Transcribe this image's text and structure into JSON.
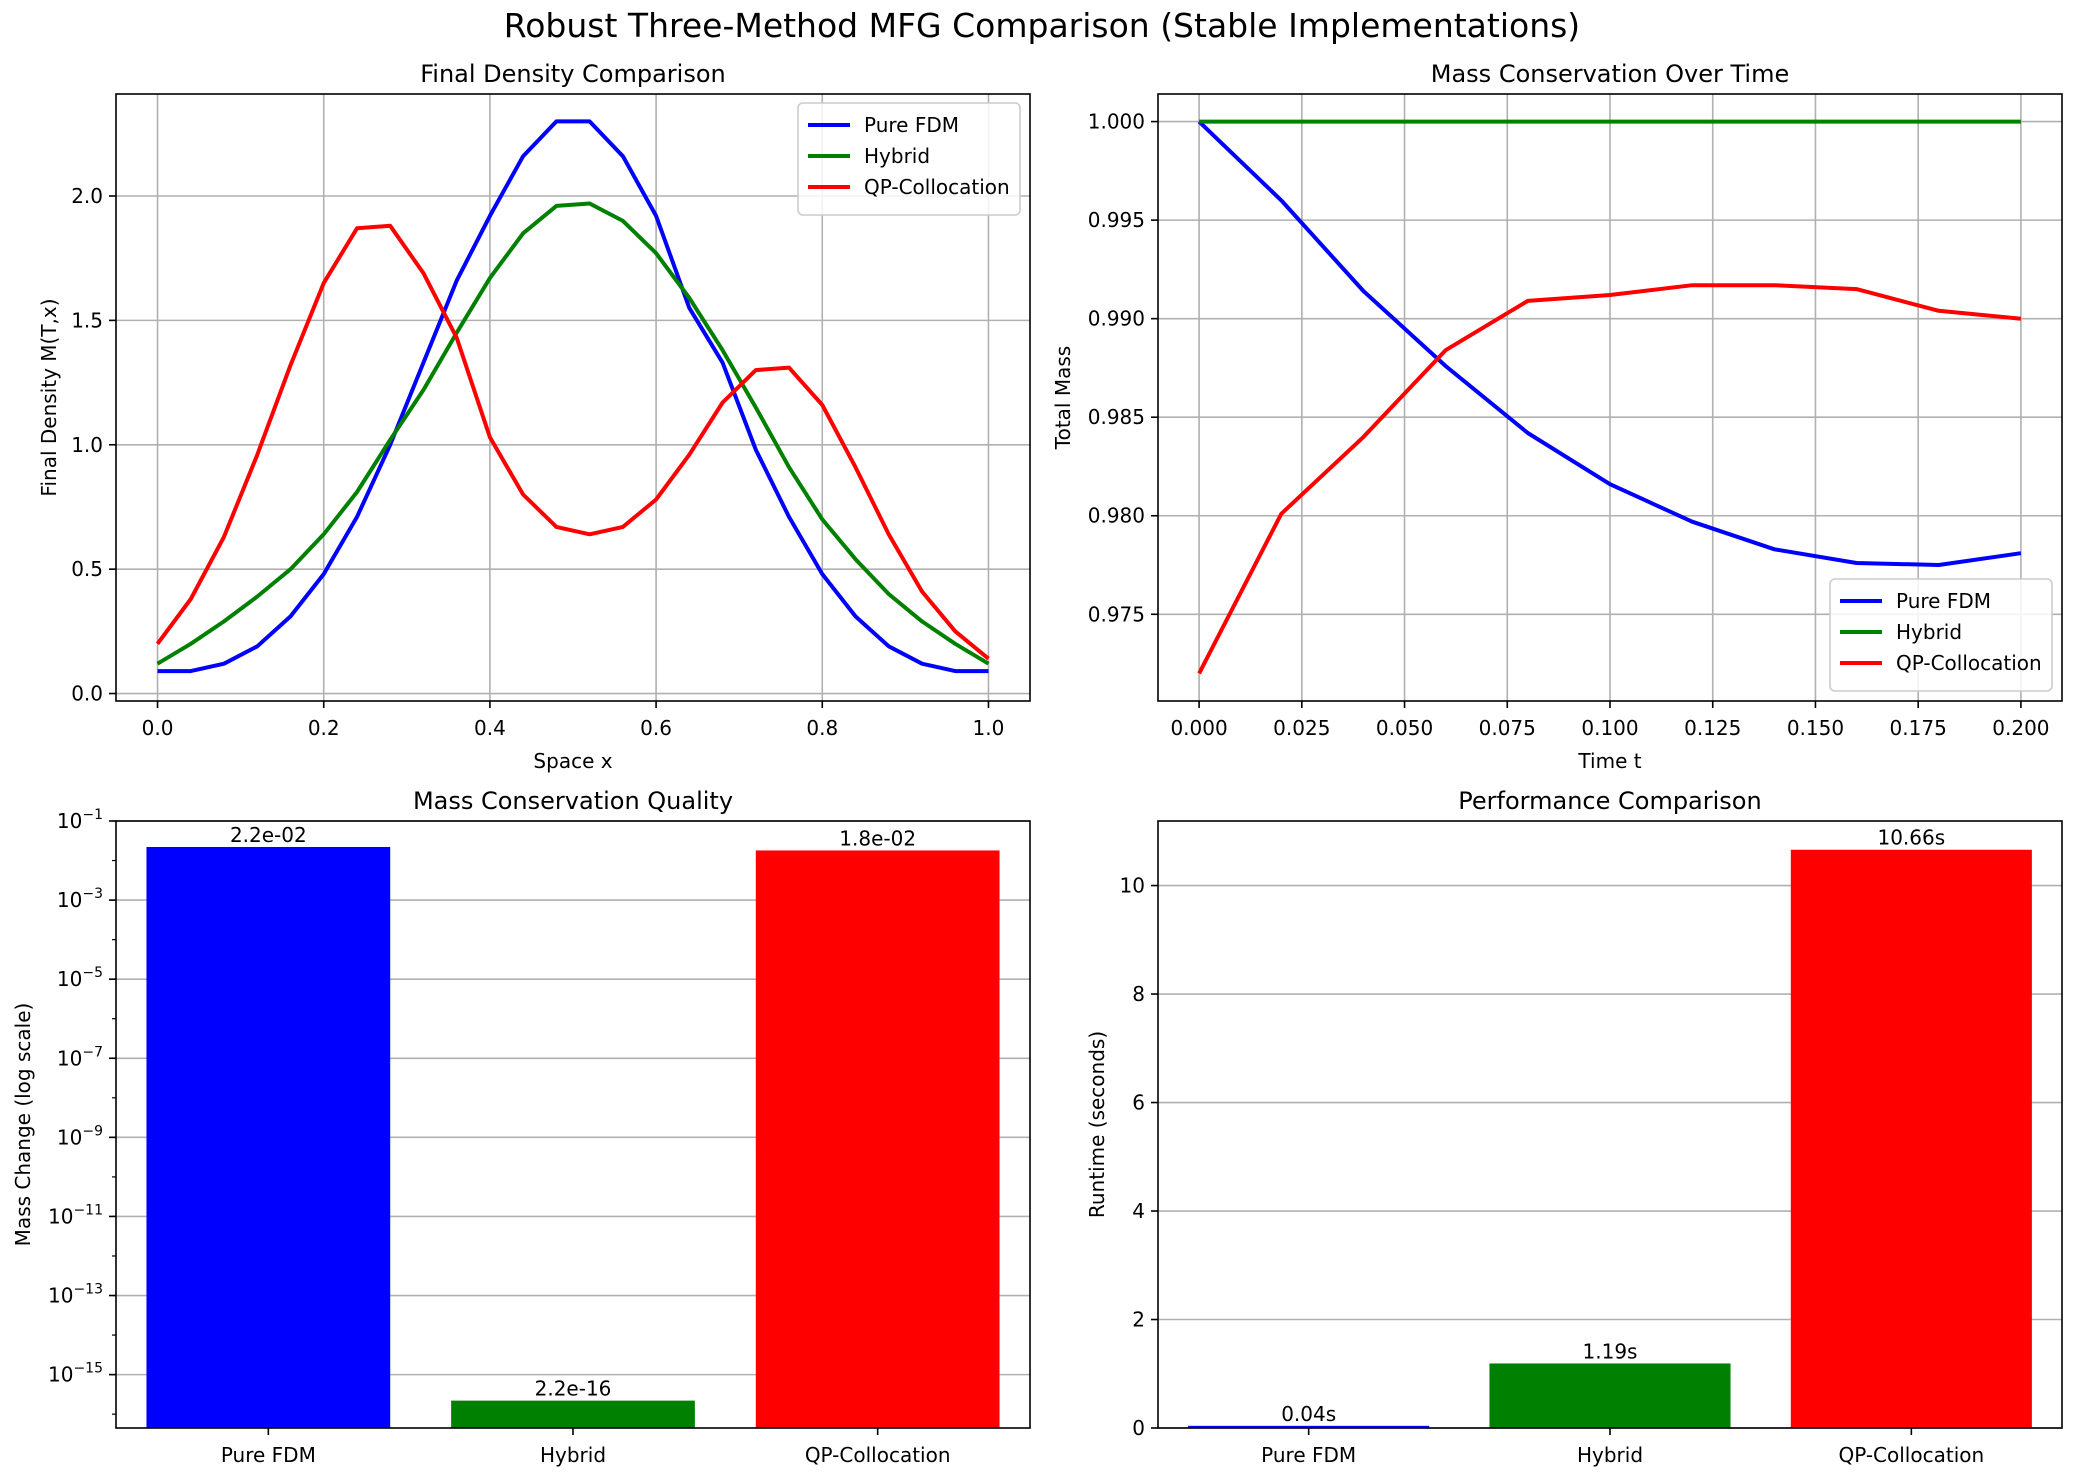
{
  "figure": {
    "title": "Robust Three-Method MFG Comparison (Stable Implementations)"
  },
  "colors": {
    "Pure FDM": "#0000ff",
    "Hybrid": "#008000",
    "QP-Collocation": "#ff0000",
    "grid": "#b0b0b0"
  },
  "chart_data": [
    {
      "id": "final-density",
      "type": "line",
      "title": "Final Density Comparison",
      "xlabel": "Space x",
      "ylabel": "Final Density M(T,x)",
      "xlim": [
        -0.05,
        1.05
      ],
      "ylim": [
        -0.03,
        2.41
      ],
      "xticks": [
        0.0,
        0.2,
        0.4,
        0.6,
        0.8,
        1.0
      ],
      "xtick_labels": [
        "0.0",
        "0.2",
        "0.4",
        "0.6",
        "0.8",
        "1.0"
      ],
      "yticks": [
        0.0,
        0.5,
        1.0,
        1.5,
        2.0
      ],
      "ytick_labels": [
        "0.0",
        "0.5",
        "1.0",
        "1.5",
        "2.0"
      ],
      "grid": true,
      "legend": "upper right",
      "x": [
        0.0,
        0.04,
        0.08,
        0.12,
        0.16,
        0.2,
        0.24,
        0.28,
        0.32,
        0.36,
        0.4,
        0.44,
        0.48,
        0.52,
        0.56,
        0.6,
        0.64,
        0.68,
        0.72,
        0.76,
        0.8,
        0.84,
        0.88,
        0.92,
        0.96,
        1.0
      ],
      "series": [
        {
          "name": "Pure FDM",
          "values": [
            0.09,
            0.09,
            0.12,
            0.19,
            0.31,
            0.48,
            0.71,
            1.0,
            1.33,
            1.66,
            1.92,
            2.16,
            2.3,
            2.3,
            2.16,
            1.92,
            1.55,
            1.33,
            0.98,
            0.71,
            0.48,
            0.31,
            0.19,
            0.12,
            0.09,
            0.09
          ]
        },
        {
          "name": "Hybrid",
          "values": [
            0.12,
            0.2,
            0.29,
            0.39,
            0.5,
            0.64,
            0.81,
            1.02,
            1.22,
            1.45,
            1.67,
            1.85,
            1.96,
            1.97,
            1.9,
            1.77,
            1.59,
            1.38,
            1.15,
            0.91,
            0.7,
            0.54,
            0.4,
            0.29,
            0.2,
            0.12
          ]
        },
        {
          "name": "QP-Collocation",
          "values": [
            0.2,
            0.38,
            0.63,
            0.96,
            1.32,
            1.65,
            1.87,
            1.88,
            1.69,
            1.43,
            1.03,
            0.8,
            0.67,
            0.64,
            0.67,
            0.78,
            0.96,
            1.17,
            1.3,
            1.31,
            1.16,
            0.91,
            0.64,
            0.41,
            0.25,
            0.14
          ]
        }
      ]
    },
    {
      "id": "mass-conservation",
      "type": "line",
      "title": "Mass Conservation Over Time",
      "xlabel": "Time t",
      "ylabel": "Total Mass",
      "xlim": [
        -0.01,
        0.21
      ],
      "ylim": [
        0.9706,
        1.0014
      ],
      "xticks": [
        0.0,
        0.025,
        0.05,
        0.075,
        0.1,
        0.125,
        0.15,
        0.175,
        0.2
      ],
      "xtick_labels": [
        "0.000",
        "0.025",
        "0.050",
        "0.075",
        "0.100",
        "0.125",
        "0.150",
        "0.175",
        "0.200"
      ],
      "yticks": [
        0.975,
        0.98,
        0.985,
        0.99,
        0.995,
        1.0
      ],
      "ytick_labels": [
        "0.975",
        "0.980",
        "0.985",
        "0.990",
        "0.995",
        "1.000"
      ],
      "grid": true,
      "legend": "lower right",
      "x": [
        0.0,
        0.02,
        0.04,
        0.06,
        0.08,
        0.1,
        0.12,
        0.14,
        0.16,
        0.18,
        0.2
      ],
      "series": [
        {
          "name": "Pure FDM",
          "values": [
            1.0,
            0.996,
            0.9914,
            0.9876,
            0.9842,
            0.9816,
            0.9797,
            0.9783,
            0.9776,
            0.9775,
            0.9781
          ]
        },
        {
          "name": "Hybrid",
          "values": [
            1.0,
            1.0,
            1.0,
            1.0,
            1.0,
            1.0,
            1.0,
            1.0,
            1.0,
            1.0,
            1.0
          ]
        },
        {
          "name": "QP-Collocation",
          "values": [
            0.972,
            0.9801,
            0.984,
            0.9884,
            0.9909,
            0.9912,
            0.9917,
            0.9917,
            0.9915,
            0.9904,
            0.99
          ]
        }
      ]
    },
    {
      "id": "mass-quality",
      "type": "bar",
      "title": "Mass Conservation Quality",
      "xlabel": "",
      "ylabel": "Mass Change (log scale)",
      "yscale": "log",
      "ylim_log10": [
        -16.35,
        -1.0
      ],
      "yticks_exp": [
        -1,
        -3,
        -5,
        -7,
        -9,
        -11,
        -13,
        -15
      ],
      "grid": "y",
      "categories": [
        "Pure FDM",
        "Hybrid",
        "QP-Collocation"
      ],
      "values": [
        0.022,
        2.2e-16,
        0.018
      ],
      "labels": [
        "2.2e-02",
        "2.2e-16",
        "1.8e-02"
      ]
    },
    {
      "id": "performance",
      "type": "bar",
      "title": "Performance Comparison",
      "xlabel": "",
      "ylabel": "Runtime (seconds)",
      "ylim": [
        0,
        11.19
      ],
      "yticks": [
        0,
        2,
        4,
        6,
        8,
        10
      ],
      "ytick_labels": [
        "0",
        "2",
        "4",
        "6",
        "8",
        "10"
      ],
      "grid": "y",
      "categories": [
        "Pure FDM",
        "Hybrid",
        "QP-Collocation"
      ],
      "values": [
        0.04,
        1.19,
        10.66
      ],
      "labels": [
        "0.04s",
        "1.19s",
        "10.66s"
      ]
    }
  ]
}
